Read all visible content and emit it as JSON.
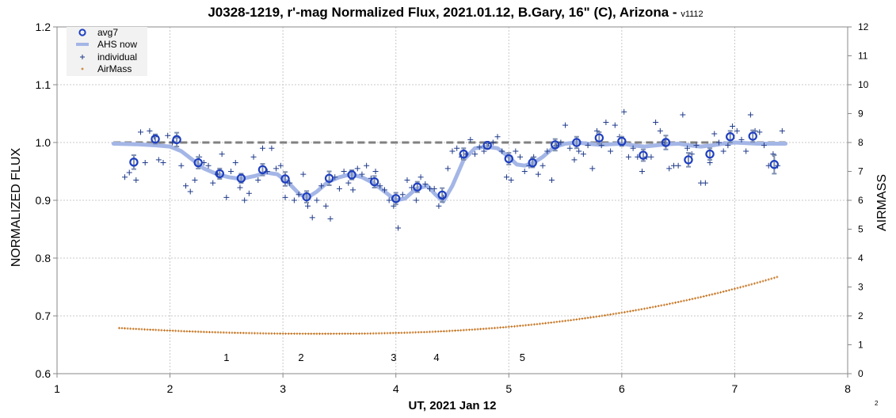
{
  "chart_data": {
    "type": "scatter",
    "title": "J0328-1219, r'-mag Normalized Flux, 2021.01.12, B.Gary, 16\" (C), Arizona - ",
    "version": "v1112",
    "xlabel": "UT, 2021 Jan 12",
    "ylabel": "NORMALIZED FLUX",
    "y2label": "AIRMASS",
    "xlim": [
      1,
      8
    ],
    "ylim": [
      0.6,
      1.2
    ],
    "y2lim": [
      0,
      12
    ],
    "xticks": [
      "1",
      "2",
      "3",
      "4",
      "5",
      "6",
      "7",
      "8"
    ],
    "yticks": [
      "0.6",
      "0.7",
      "0.8",
      "0.9",
      "1.0",
      "1.1",
      "1.2"
    ],
    "y2ticks": [
      "0",
      "1",
      "2",
      "3",
      "4",
      "5",
      "6",
      "7",
      "8",
      "9",
      "10",
      "11",
      "12"
    ],
    "grid": true,
    "footnote": "2",
    "reference_level": 1.0,
    "reference_x": [
      1.5,
      7.45
    ],
    "legend": {
      "position": "top-left",
      "entries": [
        {
          "label": "avg7",
          "color": "#1f3fbf"
        },
        {
          "label": "AHS now",
          "color": "#a4b6e6"
        },
        {
          "label": "individual",
          "color": "#1f3a8a"
        },
        {
          "label": "AirMass",
          "color": "#c06a10"
        }
      ]
    },
    "annotations": [
      {
        "text": "1",
        "x": 2.5,
        "y": 0.622
      },
      {
        "text": "2",
        "x": 3.16,
        "y": 0.622
      },
      {
        "text": "3",
        "x": 3.98,
        "y": 0.622
      },
      {
        "text": "4",
        "x": 4.36,
        "y": 0.622
      },
      {
        "text": "5",
        "x": 5.12,
        "y": 0.622
      }
    ],
    "series": [
      {
        "name": "avg7",
        "x": [
          1.68,
          1.87,
          2.06,
          2.25,
          2.44,
          2.63,
          2.82,
          3.02,
          3.21,
          3.41,
          3.61,
          3.81,
          4.0,
          4.19,
          4.41,
          4.6,
          4.81,
          5.0,
          5.21,
          5.41,
          5.6,
          5.8,
          6.0,
          6.19,
          6.39,
          6.59,
          6.78,
          6.96,
          7.16,
          7.35
        ],
        "y": [
          0.966,
          1.006,
          1.005,
          0.965,
          0.946,
          0.938,
          0.953,
          0.937,
          0.906,
          0.938,
          0.944,
          0.932,
          0.903,
          0.923,
          0.909,
          0.98,
          0.995,
          0.972,
          0.965,
          0.996,
          1.0,
          1.008,
          1.002,
          0.978,
          1.0,
          0.97,
          0.98,
          1.01,
          1.011,
          0.962
        ],
        "err": [
          0.012,
          0.008,
          0.012,
          0.01,
          0.009,
          0.008,
          0.01,
          0.012,
          0.01,
          0.012,
          0.008,
          0.01,
          0.01,
          0.009,
          0.012,
          0.01,
          0.006,
          0.01,
          0.008,
          0.01,
          0.01,
          0.01,
          0.008,
          0.01,
          0.012,
          0.012,
          0.01,
          0.01,
          0.01,
          0.016
        ]
      },
      {
        "name": "AHS now",
        "x": [
          1.5,
          1.7,
          1.88,
          2.0,
          2.1,
          2.2,
          2.3,
          2.42,
          2.52,
          2.63,
          2.75,
          2.85,
          2.95,
          3.05,
          3.15,
          3.22,
          3.3,
          3.4,
          3.5,
          3.6,
          3.7,
          3.8,
          3.9,
          4.0,
          4.08,
          4.18,
          4.28,
          4.35,
          4.42,
          4.5,
          4.6,
          4.7,
          4.8,
          4.9,
          5.0,
          5.07,
          5.14,
          5.22,
          5.3,
          5.4,
          5.5,
          5.6,
          5.7,
          5.8,
          5.9,
          6.0,
          6.1,
          6.2,
          6.3,
          6.4,
          6.5,
          6.6,
          6.7,
          6.8,
          6.9,
          7.0,
          7.1,
          7.2,
          7.3,
          7.45
        ],
        "y": [
          0.998,
          0.997,
          0.995,
          0.993,
          0.985,
          0.97,
          0.955,
          0.945,
          0.94,
          0.937,
          0.942,
          0.948,
          0.945,
          0.93,
          0.91,
          0.905,
          0.915,
          0.932,
          0.94,
          0.945,
          0.94,
          0.93,
          0.915,
          0.9,
          0.903,
          0.92,
          0.925,
          0.91,
          0.898,
          0.925,
          0.97,
          0.99,
          0.993,
          0.99,
          0.975,
          0.962,
          0.96,
          0.965,
          0.975,
          0.992,
          0.998,
          1.0,
          0.998,
          0.996,
          0.997,
          0.998,
          0.995,
          0.993,
          0.995,
          0.997,
          0.998,
          0.995,
          0.993,
          0.995,
          0.998,
          1.0,
          0.999,
          0.998,
          0.998,
          0.998
        ]
      },
      {
        "name": "individual",
        "x": [
          1.6,
          1.64,
          1.7,
          1.74,
          1.78,
          1.82,
          1.86,
          1.9,
          1.94,
          1.98,
          2.02,
          2.06,
          2.1,
          2.14,
          2.18,
          2.22,
          2.26,
          2.3,
          2.34,
          2.38,
          2.42,
          2.46,
          2.5,
          2.54,
          2.58,
          2.62,
          2.66,
          2.7,
          2.74,
          2.78,
          2.82,
          2.86,
          2.9,
          2.94,
          2.98,
          3.02,
          3.06,
          3.1,
          3.14,
          3.18,
          3.22,
          3.26,
          3.3,
          3.34,
          3.38,
          3.42,
          3.46,
          3.5,
          3.54,
          3.58,
          3.62,
          3.66,
          3.7,
          3.74,
          3.78,
          3.82,
          3.86,
          3.9,
          3.94,
          3.98,
          4.02,
          4.06,
          4.1,
          4.14,
          4.18,
          4.22,
          4.26,
          4.3,
          4.34,
          4.38,
          4.42,
          4.46,
          4.5,
          4.54,
          4.58,
          4.62,
          4.66,
          4.7,
          4.74,
          4.78,
          4.82,
          4.86,
          4.9,
          4.94,
          4.98,
          5.02,
          5.06,
          5.1,
          5.14,
          5.18,
          5.22,
          5.26,
          5.3,
          5.34,
          5.38,
          5.42,
          5.46,
          5.5,
          5.54,
          5.58,
          5.62,
          5.66,
          5.7,
          5.74,
          5.78,
          5.82,
          5.86,
          5.9,
          5.94,
          5.98,
          6.02,
          6.06,
          6.1,
          6.14,
          6.18,
          6.22,
          6.26,
          6.3,
          6.34,
          6.38,
          6.42,
          6.46,
          6.5,
          6.54,
          6.58,
          6.62,
          6.66,
          6.7,
          6.74,
          6.78,
          6.82,
          6.86,
          6.9,
          6.94,
          6.98,
          7.02,
          7.06,
          7.1,
          7.14,
          7.18,
          7.22,
          7.26,
          7.3,
          7.34,
          7.38,
          7.42
        ],
        "y": [
          0.94,
          0.948,
          0.935,
          1.018,
          0.965,
          1.02,
          1.01,
          0.97,
          0.965,
          1.012,
          1.0,
          1.008,
          0.96,
          0.925,
          0.915,
          0.935,
          0.975,
          0.965,
          0.96,
          0.93,
          0.945,
          0.98,
          0.905,
          0.95,
          0.965,
          0.922,
          0.9,
          0.912,
          0.975,
          0.935,
          0.99,
          0.95,
          0.99,
          0.955,
          0.96,
          0.905,
          0.93,
          0.9,
          0.91,
          0.945,
          0.89,
          0.87,
          0.9,
          0.925,
          0.89,
          0.868,
          0.94,
          0.92,
          0.95,
          0.93,
          0.918,
          0.955,
          0.945,
          0.96,
          0.938,
          0.95,
          0.925,
          0.918,
          0.9,
          0.89,
          0.852,
          0.91,
          0.935,
          0.922,
          0.9,
          0.94,
          0.928,
          0.92,
          0.92,
          0.89,
          0.905,
          0.955,
          0.985,
          0.99,
          0.975,
          0.98,
          1.005,
          0.98,
          0.992,
          0.985,
          0.998,
          1.0,
          1.01,
          0.985,
          0.94,
          0.935,
          0.985,
          0.975,
          0.95,
          0.96,
          0.975,
          0.945,
          0.96,
          0.985,
          0.935,
          0.995,
          1.0,
          1.03,
          0.99,
          0.97,
          0.985,
          0.98,
          0.995,
          0.955,
          1.02,
          0.995,
          1.035,
          0.985,
          1.03,
          1.01,
          1.053,
          0.975,
          0.99,
          0.975,
          0.95,
          0.975,
          0.975,
          1.035,
          1.02,
          1.0,
          0.955,
          0.96,
          0.96,
          1.048,
          0.99,
          0.98,
          0.995,
          0.93,
          0.93,
          0.965,
          1.015,
          1.0,
          0.985,
          0.995,
          1.028,
          1.02,
          1.005,
          0.985,
          1.048,
          1.02,
          1.018,
          0.995,
          0.96,
          0.98,
          0.96,
          1.02
        ]
      },
      {
        "name": "AirMass",
        "x_start": 1.55,
        "x_end": 7.38,
        "step": 0.025,
        "minimum": {
          "x": 3.3,
          "y": 1.38
        },
        "start_value": 1.58,
        "end_value": 3.35
      }
    ]
  }
}
